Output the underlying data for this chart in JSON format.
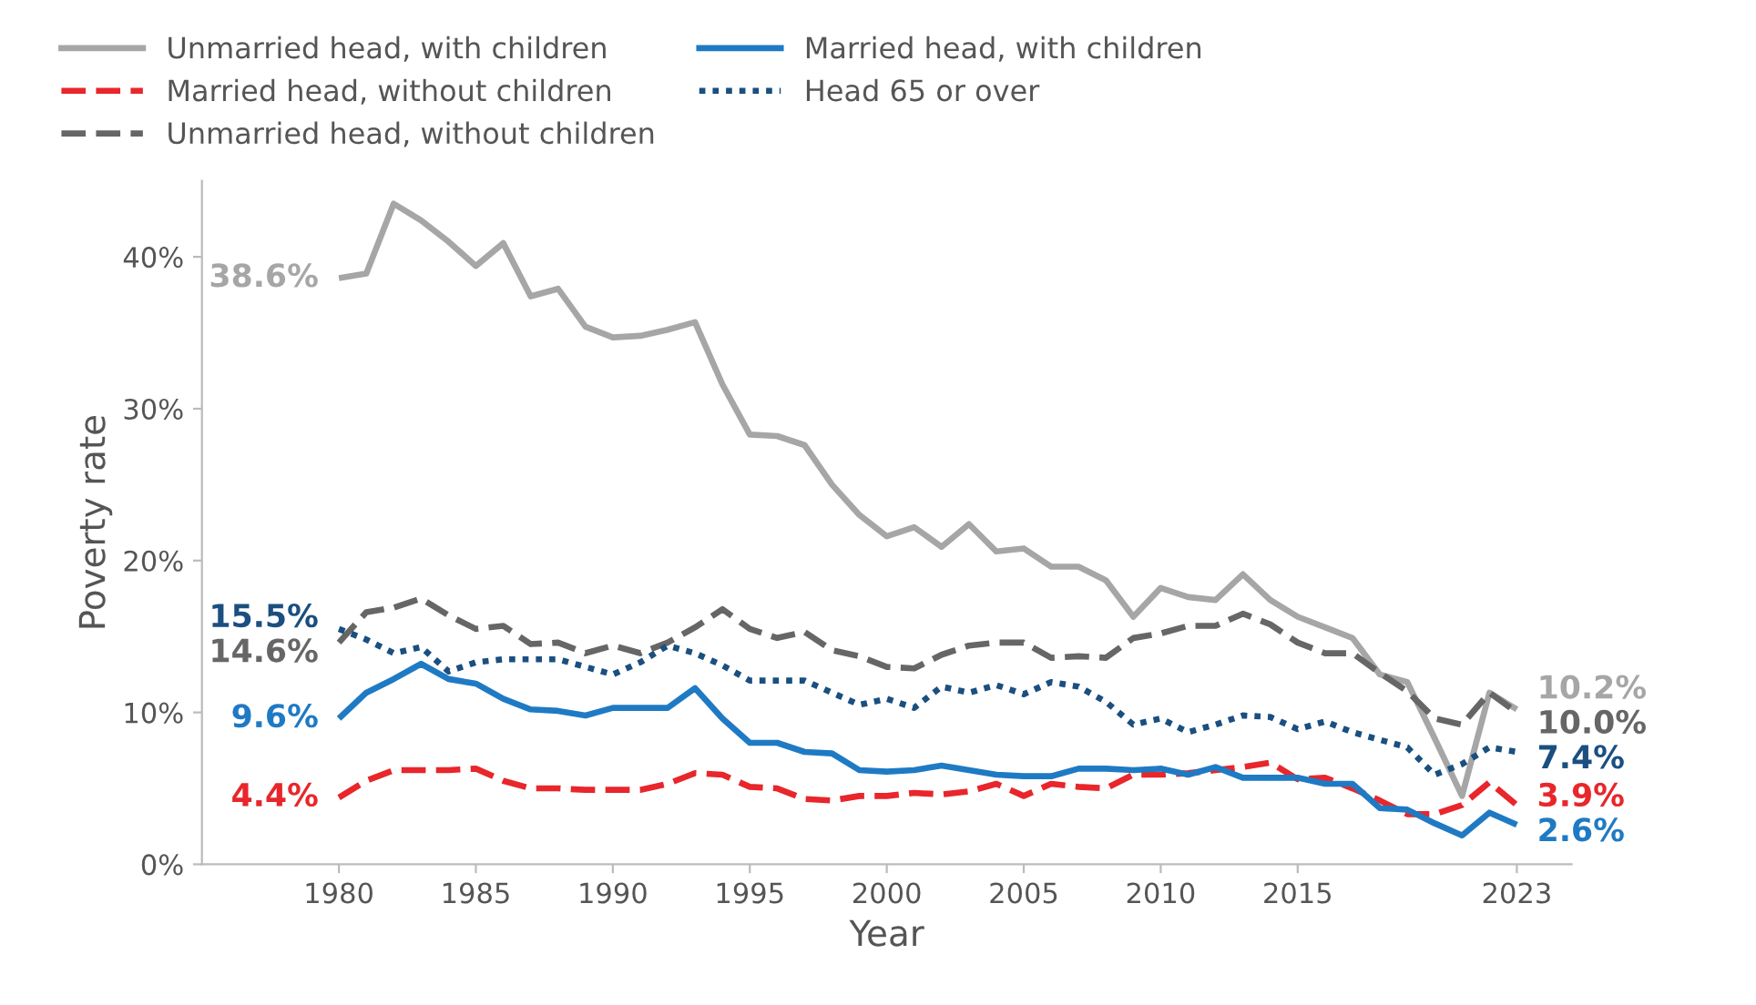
{
  "chart_data": {
    "type": "line",
    "xlabel": "Year",
    "ylabel": "Poverty rate",
    "x": [
      1980,
      1981,
      1982,
      1983,
      1984,
      1985,
      1986,
      1987,
      1988,
      1989,
      1990,
      1991,
      1992,
      1993,
      1994,
      1995,
      1996,
      1997,
      1998,
      1999,
      2000,
      2001,
      2002,
      2003,
      2004,
      2005,
      2006,
      2007,
      2008,
      2009,
      2010,
      2011,
      2012,
      2013,
      2014,
      2015,
      2016,
      2017,
      2018,
      2019,
      2020,
      2021,
      2022,
      2023
    ],
    "series": [
      {
        "name": "Unmarried head, with children",
        "color": "#a6a6a6",
        "line_style": "solid",
        "values": [
          38.6,
          38.9,
          43.5,
          42.4,
          41.0,
          39.4,
          40.9,
          37.4,
          37.9,
          35.4,
          34.7,
          34.8,
          35.2,
          35.7,
          31.6,
          28.3,
          28.2,
          27.6,
          25.0,
          23.0,
          21.6,
          22.2,
          20.9,
          22.4,
          20.6,
          20.8,
          19.6,
          19.6,
          18.7,
          16.3,
          18.2,
          17.6,
          17.4,
          19.1,
          17.4,
          16.3,
          15.6,
          14.9,
          12.5,
          12.0,
          8.3,
          4.5,
          11.3,
          10.2
        ],
        "value_labels": [
          "38.6%",
          null,
          null,
          null,
          null,
          null,
          null,
          null,
          null,
          null,
          null,
          null,
          null,
          null,
          null,
          null,
          null,
          null,
          null,
          null,
          null,
          null,
          null,
          null,
          null,
          null,
          null,
          null,
          null,
          null,
          null,
          null,
          null,
          null,
          null,
          null,
          null,
          null,
          null,
          null,
          null,
          null,
          null,
          "10.2%"
        ]
      },
      {
        "name": "Married head, without children",
        "color": "#e8262b",
        "line_style": "dashed",
        "values": [
          4.4,
          5.5,
          6.2,
          6.2,
          6.2,
          6.3,
          5.5,
          5.0,
          5.0,
          4.9,
          4.9,
          4.9,
          5.3,
          6.0,
          5.9,
          5.1,
          5.0,
          4.3,
          4.2,
          4.5,
          4.5,
          4.7,
          4.6,
          4.8,
          5.3,
          4.5,
          5.3,
          5.1,
          5.0,
          5.9,
          5.9,
          6.0,
          6.2,
          6.4,
          6.7,
          5.6,
          5.7,
          5.0,
          4.2,
          3.3,
          3.3,
          3.9,
          5.4,
          3.9
        ],
        "value_labels": [
          "4.4%",
          null,
          null,
          null,
          null,
          null,
          null,
          null,
          null,
          null,
          null,
          null,
          null,
          null,
          null,
          null,
          null,
          null,
          null,
          null,
          null,
          null,
          null,
          null,
          null,
          null,
          null,
          null,
          null,
          null,
          null,
          null,
          null,
          null,
          null,
          null,
          null,
          null,
          null,
          null,
          null,
          null,
          null,
          "3.9%"
        ]
      },
      {
        "name": "Unmarried head, without children",
        "color": "#666666",
        "line_style": "dashed",
        "values": [
          14.6,
          16.6,
          16.9,
          17.5,
          16.4,
          15.5,
          15.7,
          14.5,
          14.6,
          13.9,
          14.4,
          13.9,
          14.6,
          15.6,
          16.8,
          15.5,
          14.9,
          15.3,
          14.1,
          13.7,
          13.0,
          12.9,
          13.8,
          14.4,
          14.6,
          14.6,
          13.6,
          13.7,
          13.6,
          14.9,
          15.2,
          15.7,
          15.7,
          16.5,
          15.8,
          14.6,
          13.9,
          13.9,
          12.6,
          11.4,
          9.6,
          9.2,
          11.3,
          10.0
        ],
        "value_labels": [
          "14.6%",
          null,
          null,
          null,
          null,
          null,
          null,
          null,
          null,
          null,
          null,
          null,
          null,
          null,
          null,
          null,
          null,
          null,
          null,
          null,
          null,
          null,
          null,
          null,
          null,
          null,
          null,
          null,
          null,
          null,
          null,
          null,
          null,
          null,
          null,
          null,
          null,
          null,
          null,
          null,
          null,
          null,
          null,
          "10.0%"
        ]
      },
      {
        "name": "Married head, with children",
        "color": "#1f7ac4",
        "line_style": "solid",
        "values": [
          9.6,
          11.3,
          12.2,
          13.2,
          12.2,
          11.9,
          10.9,
          10.2,
          10.1,
          9.8,
          10.3,
          10.3,
          10.3,
          11.6,
          9.6,
          8.0,
          8.0,
          7.4,
          7.3,
          6.2,
          6.1,
          6.2,
          6.5,
          6.2,
          5.9,
          5.8,
          5.8,
          6.3,
          6.3,
          6.2,
          6.3,
          5.9,
          6.4,
          5.7,
          5.7,
          5.7,
          5.3,
          5.3,
          3.7,
          3.6,
          2.7,
          1.9,
          3.4,
          2.6
        ],
        "value_labels": [
          "9.6%",
          null,
          null,
          null,
          null,
          null,
          null,
          null,
          null,
          null,
          null,
          null,
          null,
          null,
          null,
          null,
          null,
          null,
          null,
          null,
          null,
          null,
          null,
          null,
          null,
          null,
          null,
          null,
          null,
          null,
          null,
          null,
          null,
          null,
          null,
          null,
          null,
          null,
          null,
          null,
          null,
          null,
          null,
          "2.6%"
        ]
      },
      {
        "name": "Head 65 or over",
        "color": "#1a4f80",
        "line_style": "dotted",
        "values": [
          15.5,
          14.8,
          13.9,
          14.3,
          12.7,
          13.3,
          13.5,
          13.5,
          13.5,
          13.0,
          12.5,
          13.3,
          14.4,
          13.9,
          13.1,
          12.1,
          12.1,
          12.1,
          11.3,
          10.5,
          10.9,
          10.3,
          11.7,
          11.3,
          11.8,
          11.2,
          12.0,
          11.7,
          10.7,
          9.2,
          9.6,
          8.7,
          9.2,
          9.8,
          9.7,
          8.9,
          9.4,
          8.7,
          8.2,
          7.7,
          5.9,
          6.6,
          7.7,
          7.4
        ],
        "value_labels": [
          "15.5%",
          null,
          null,
          null,
          null,
          null,
          null,
          null,
          null,
          null,
          null,
          null,
          null,
          null,
          null,
          null,
          null,
          null,
          null,
          null,
          null,
          null,
          null,
          null,
          null,
          null,
          null,
          null,
          null,
          null,
          null,
          null,
          null,
          null,
          null,
          null,
          null,
          null,
          null,
          null,
          null,
          null,
          null,
          "7.4%"
        ]
      }
    ],
    "xlim": [
      1975,
      2025
    ],
    "xticks": [
      1980,
      1985,
      1990,
      1995,
      2000,
      2005,
      2010,
      2015,
      2023
    ],
    "ylim": [
      0,
      45
    ],
    "yticks": [
      {
        "value": 0,
        "label": "0%"
      },
      {
        "value": 10,
        "label": "10%"
      },
      {
        "value": 20,
        "label": "20%"
      },
      {
        "value": 30,
        "label": "30%"
      },
      {
        "value": 40,
        "label": "40%"
      }
    ],
    "grid": false,
    "legend": "top",
    "marker": "none"
  }
}
